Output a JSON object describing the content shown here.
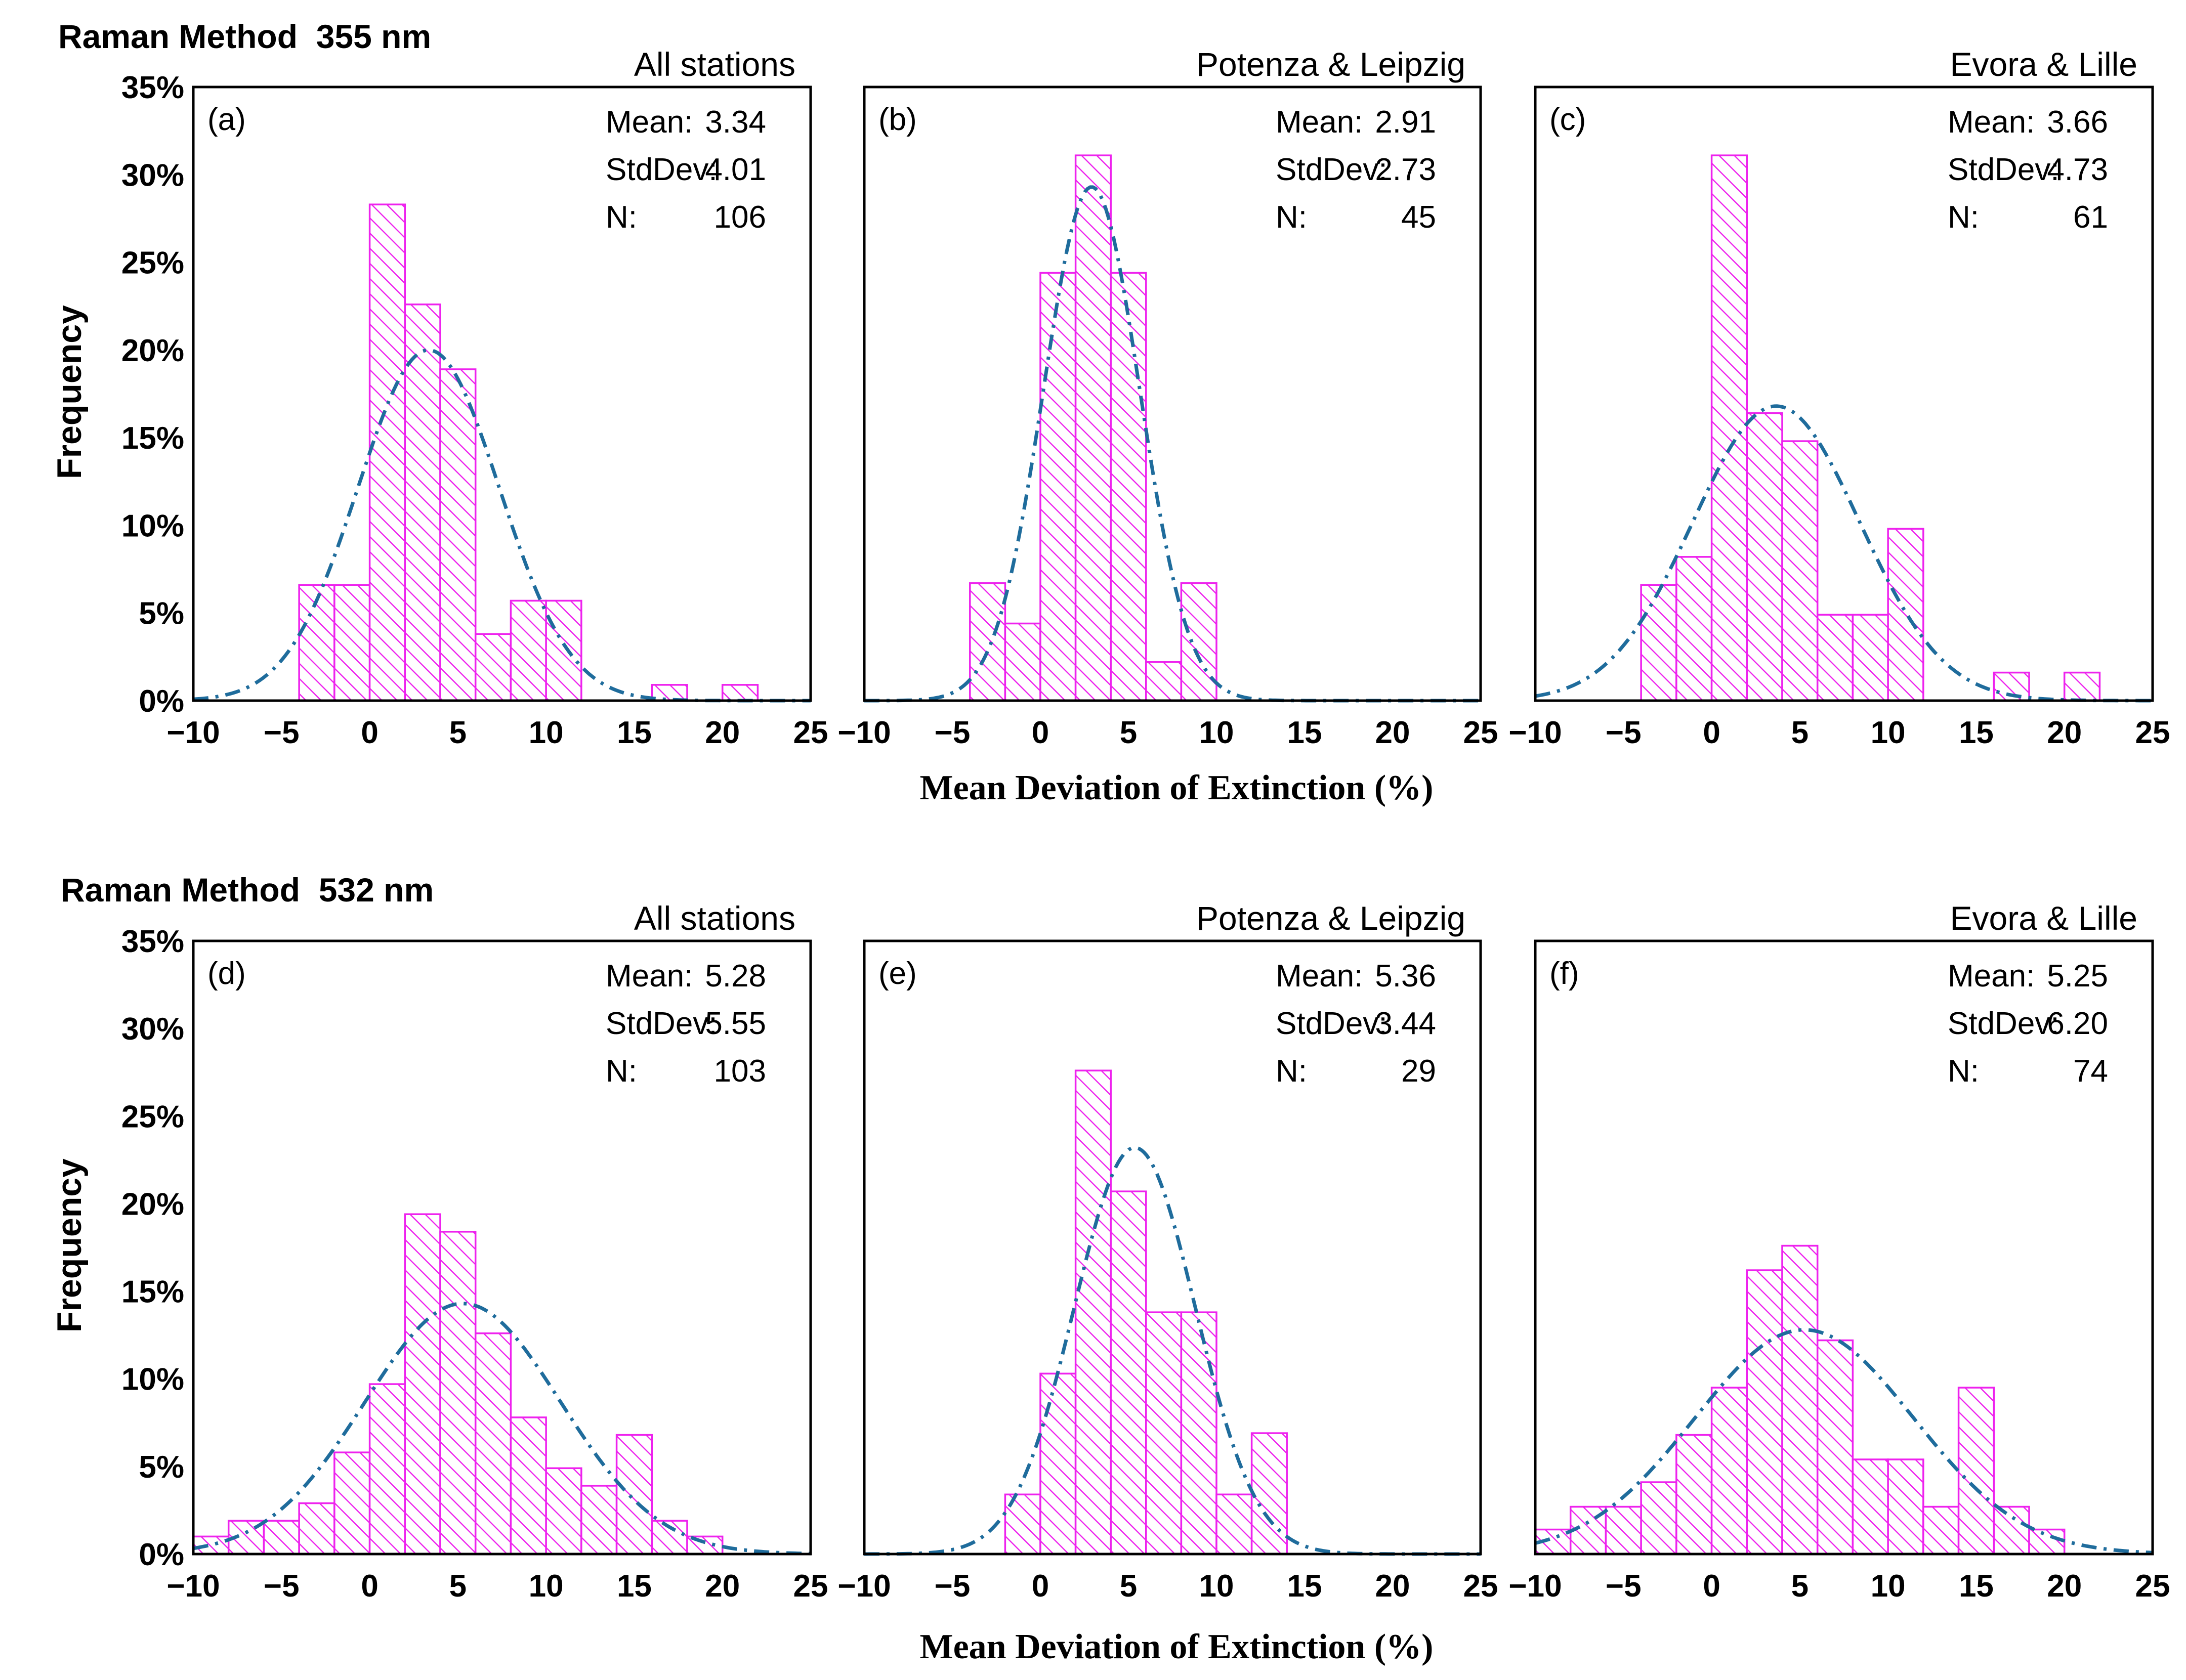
{
  "figure": {
    "y_axis_label": "Frequency",
    "x_axis_label": "Mean Deviation of Extinction (%)",
    "stat_labels": {
      "mean": "Mean:",
      "std": "StdDev:",
      "n": "N:"
    }
  },
  "colors": {
    "bar_stroke": "#ee22ee",
    "hatch": "#ee22ee",
    "fit_curve": "#1f6c9c",
    "frame": "#000000"
  },
  "rows": [
    {
      "title": "Raman Method  355 nm"
    },
    {
      "title": "Raman Method  532 nm"
    }
  ],
  "chart_data": [
    {
      "type": "bar",
      "panel": "(a)",
      "group": "All stations",
      "row": 0,
      "col": 0,
      "stats": {
        "mean": "3.34",
        "std": "4.01",
        "n": "106"
      },
      "xlim": [
        -10,
        25
      ],
      "ylim": [
        0,
        35
      ],
      "bin_width": 2,
      "xticks": [
        -10,
        -5,
        0,
        5,
        10,
        15,
        20,
        25
      ],
      "yticks": [
        0,
        5,
        10,
        15,
        20,
        25,
        30,
        35
      ],
      "bin_starts": [
        -4,
        -2,
        0,
        2,
        4,
        6,
        8,
        10,
        16,
        20
      ],
      "values": [
        6.6,
        6.6,
        28.3,
        22.6,
        18.9,
        3.8,
        5.7,
        5.7,
        0.9,
        0.9
      ],
      "fit": {
        "mean": 3.34,
        "std": 4.01,
        "peak": 20.0
      }
    },
    {
      "type": "bar",
      "panel": "(b)",
      "group": "Potenza & Leipzig",
      "row": 0,
      "col": 1,
      "stats": {
        "mean": "2.91",
        "std": "2.73",
        "n": "45"
      },
      "xlim": [
        -10,
        25
      ],
      "ylim": [
        0,
        35
      ],
      "bin_width": 2,
      "xticks": [
        -10,
        -5,
        0,
        5,
        10,
        15,
        20,
        25
      ],
      "yticks": [
        0,
        5,
        10,
        15,
        20,
        25,
        30,
        35
      ],
      "bin_starts": [
        -4,
        -2,
        0,
        2,
        4,
        6,
        8
      ],
      "values": [
        6.7,
        4.4,
        24.4,
        31.1,
        24.4,
        2.2,
        6.7
      ],
      "fit": {
        "mean": 2.91,
        "std": 2.73,
        "peak": 29.3
      }
    },
    {
      "type": "bar",
      "panel": "(c)",
      "group": "Evora & Lille",
      "row": 0,
      "col": 2,
      "stats": {
        "mean": "3.66",
        "std": "4.73",
        "n": "61"
      },
      "xlim": [
        -10,
        25
      ],
      "ylim": [
        0,
        35
      ],
      "bin_width": 2,
      "xticks": [
        -10,
        -5,
        0,
        5,
        10,
        15,
        20,
        25
      ],
      "yticks": [
        0,
        5,
        10,
        15,
        20,
        25,
        30,
        35
      ],
      "bin_starts": [
        -4,
        -2,
        0,
        2,
        4,
        6,
        8,
        10,
        16,
        20
      ],
      "values": [
        6.6,
        8.2,
        31.1,
        16.4,
        14.8,
        4.9,
        4.9,
        9.8,
        1.6,
        1.6
      ],
      "fit": {
        "mean": 3.66,
        "std": 4.73,
        "peak": 16.8
      }
    },
    {
      "type": "bar",
      "panel": "(d)",
      "group": "All stations",
      "row": 1,
      "col": 0,
      "stats": {
        "mean": "5.28",
        "std": "5.55",
        "n": "103"
      },
      "xlim": [
        -10,
        25
      ],
      "ylim": [
        0,
        35
      ],
      "bin_width": 2,
      "xticks": [
        -10,
        -5,
        0,
        5,
        10,
        15,
        20,
        25
      ],
      "yticks": [
        0,
        5,
        10,
        15,
        20,
        25,
        30,
        35
      ],
      "bin_starts": [
        -10,
        -8,
        -6,
        -4,
        -2,
        0,
        2,
        4,
        6,
        8,
        10,
        12,
        14,
        16,
        18
      ],
      "values": [
        1.0,
        1.9,
        1.9,
        2.9,
        5.8,
        9.7,
        19.4,
        18.4,
        12.6,
        7.8,
        4.9,
        3.9,
        6.8,
        1.9,
        1.0
      ],
      "fit": {
        "mean": 5.28,
        "std": 5.55,
        "peak": 14.3
      }
    },
    {
      "type": "bar",
      "panel": "(e)",
      "group": "Potenza & Leipzig",
      "row": 1,
      "col": 1,
      "stats": {
        "mean": "5.36",
        "std": "3.44",
        "n": "29"
      },
      "xlim": [
        -10,
        25
      ],
      "ylim": [
        0,
        35
      ],
      "bin_width": 2,
      "xticks": [
        -10,
        -5,
        0,
        5,
        10,
        15,
        20,
        25
      ],
      "yticks": [
        0,
        5,
        10,
        15,
        20,
        25,
        30,
        35
      ],
      "bin_starts": [
        -2,
        0,
        2,
        4,
        6,
        8,
        10,
        12
      ],
      "values": [
        3.4,
        10.3,
        27.6,
        20.7,
        13.8,
        13.8,
        3.4,
        6.9
      ],
      "fit": {
        "mean": 5.36,
        "std": 3.44,
        "peak": 23.2
      }
    },
    {
      "type": "bar",
      "panel": "(f)",
      "group": "Evora & Lille",
      "row": 1,
      "col": 2,
      "stats": {
        "mean": "5.25",
        "std": "6.20",
        "n": "74"
      },
      "xlim": [
        -10,
        25
      ],
      "ylim": [
        0,
        35
      ],
      "bin_width": 2,
      "xticks": [
        -10,
        -5,
        0,
        5,
        10,
        15,
        20,
        25
      ],
      "yticks": [
        0,
        5,
        10,
        15,
        20,
        25,
        30,
        35
      ],
      "bin_starts": [
        -10,
        -8,
        -6,
        -4,
        -2,
        0,
        2,
        4,
        6,
        8,
        10,
        12,
        14,
        16,
        18
      ],
      "values": [
        1.4,
        2.7,
        2.7,
        4.1,
        6.8,
        9.5,
        16.2,
        17.6,
        12.2,
        5.4,
        5.4,
        2.7,
        9.5,
        2.7,
        1.4
      ],
      "fit": {
        "mean": 5.25,
        "std": 6.2,
        "peak": 12.8
      }
    }
  ]
}
